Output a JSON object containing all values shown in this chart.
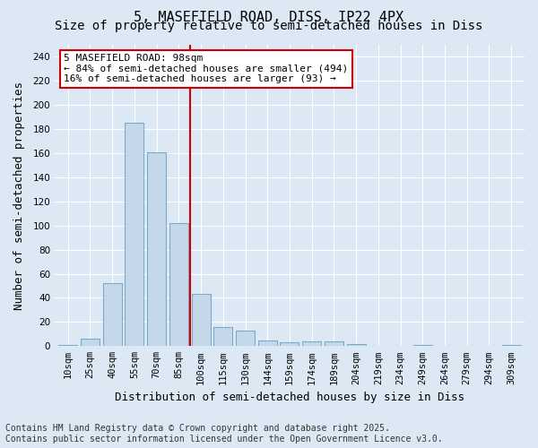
{
  "title": "5, MASEFIELD ROAD, DISS, IP22 4PX",
  "subtitle": "Size of property relative to semi-detached houses in Diss",
  "xlabel": "Distribution of semi-detached houses by size in Diss",
  "ylabel": "Number of semi-detached properties",
  "categories": [
    "10sqm",
    "25sqm",
    "40sqm",
    "55sqm",
    "70sqm",
    "85sqm",
    "100sqm",
    "115sqm",
    "130sqm",
    "144sqm",
    "159sqm",
    "174sqm",
    "189sqm",
    "204sqm",
    "219sqm",
    "234sqm",
    "249sqm",
    "264sqm",
    "279sqm",
    "294sqm",
    "309sqm"
  ],
  "values": [
    1,
    6,
    52,
    185,
    161,
    102,
    43,
    16,
    13,
    5,
    3,
    4,
    4,
    2,
    0,
    0,
    1,
    0,
    0,
    0,
    1
  ],
  "bar_color": "#c5d8ea",
  "bar_edge_color": "#7aaac8",
  "vline_x": 5.5,
  "annotation_text": "5 MASEFIELD ROAD: 98sqm\n← 84% of semi-detached houses are smaller (494)\n16% of semi-detached houses are larger (93) →",
  "annotation_box_color": "#ffffff",
  "annotation_box_edge": "#cc0000",
  "vline_color": "#cc0000",
  "ylim": [
    0,
    250
  ],
  "yticks": [
    0,
    20,
    40,
    60,
    80,
    100,
    120,
    140,
    160,
    180,
    200,
    220,
    240
  ],
  "background_color": "#dce9f5",
  "plot_background": "#dce9f5",
  "footer_text": "Contains HM Land Registry data © Crown copyright and database right 2025.\nContains public sector information licensed under the Open Government Licence v3.0.",
  "title_fontsize": 11,
  "subtitle_fontsize": 10,
  "xlabel_fontsize": 9,
  "ylabel_fontsize": 9,
  "tick_fontsize": 7.5,
  "annotation_fontsize": 8,
  "footer_fontsize": 7
}
